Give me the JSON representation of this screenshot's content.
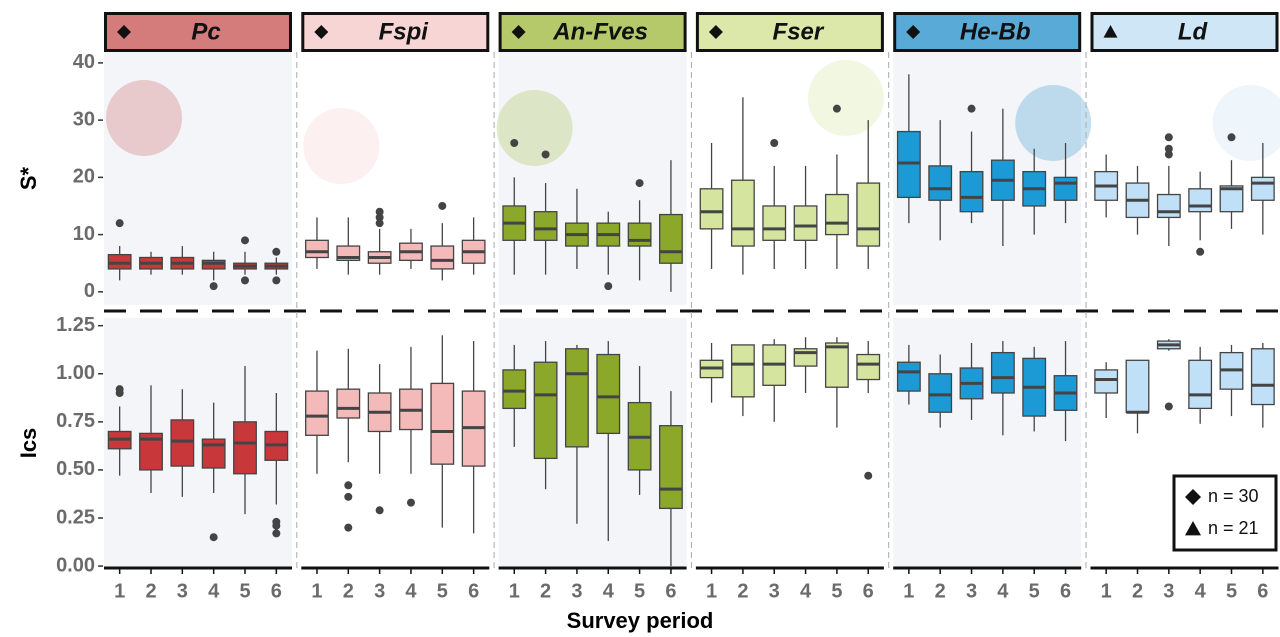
{
  "chart_data": {
    "type": "box",
    "x_label": "Survey period",
    "categories": [
      "1",
      "2",
      "3",
      "4",
      "5",
      "6"
    ],
    "rows": [
      {
        "y_label": "S*",
        "ylim": [
          -2.3,
          41.9
        ],
        "yticks": [
          0,
          10,
          20,
          30,
          40
        ]
      },
      {
        "y_label": "Ics",
        "ylim": [
          -0.01,
          1.29
        ],
        "yticks": [
          {
            "value": 0,
            "label": "0.00"
          },
          0.25,
          {
            "value": 0.5,
            "label": "0.50"
          },
          0.75,
          {
            "value": 1,
            "label": "1.00"
          },
          1.25
        ]
      }
    ],
    "legend": [
      {
        "marker": "diamond",
        "label": "n = 30"
      },
      {
        "marker": "triangle",
        "label": "n = 21"
      }
    ],
    "facets": [
      {
        "name": "Pc",
        "marker": "diamond",
        "header_color": "#d47b7b",
        "box_color": "#c8383a",
        "panel_shaded": true,
        "rows": [
          {
            "low": [
              2,
              3,
              3,
              2,
              3,
              3
            ],
            "q1": [
              4,
              4,
              4,
              4,
              4,
              4
            ],
            "median": [
              5,
              5,
              5,
              5,
              4.5,
              4.5
            ],
            "q3": [
              6.5,
              6,
              6,
              5.5,
              5,
              5
            ],
            "high": [
              8,
              7,
              8,
              7,
              7,
              6
            ],
            "outliers": [
              [
                12
              ],
              [],
              [],
              [
                1
              ],
              [
                9,
                2
              ],
              [
                7,
                2
              ]
            ]
          },
          {
            "low": [
              0.47,
              0.38,
              0.36,
              0.38,
              0.27,
              0.32
            ],
            "q1": [
              0.61,
              0.5,
              0.52,
              0.51,
              0.48,
              0.55
            ],
            "median": [
              0.66,
              0.66,
              0.65,
              0.63,
              0.64,
              0.63
            ],
            "q3": [
              0.7,
              0.69,
              0.76,
              0.66,
              0.75,
              0.7
            ],
            "high": [
              0.83,
              0.94,
              0.92,
              0.85,
              1.04,
              0.9
            ],
            "outliers": [
              [
                0.92,
                0.9
              ],
              [],
              [],
              [
                0.15
              ],
              [],
              [
                0.23,
                0.21,
                0.17
              ]
            ]
          }
        ]
      },
      {
        "name": "Fspi",
        "marker": "diamond",
        "header_color": "#f7d5d5",
        "box_color": "#f4b9b9",
        "panel_shaded": false,
        "rows": [
          {
            "low": [
              4,
              3,
              3,
              4,
              2,
              3
            ],
            "q1": [
              6,
              5.5,
              5,
              5.5,
              4,
              5
            ],
            "median": [
              7,
              6,
              6,
              7,
              5.5,
              7
            ],
            "q3": [
              9,
              8,
              7,
              8.5,
              8,
              9
            ],
            "high": [
              13,
              13,
              11,
              11,
              12,
              13
            ],
            "outliers": [
              [],
              [],
              [
                14,
                13,
                12
              ],
              [],
              [
                15
              ],
              []
            ]
          },
          {
            "low": [
              0.48,
              0.54,
              0.48,
              0.48,
              0.2,
              0.17
            ],
            "q1": [
              0.68,
              0.77,
              0.7,
              0.71,
              0.53,
              0.52
            ],
            "median": [
              0.78,
              0.82,
              0.8,
              0.81,
              0.7,
              0.72
            ],
            "q3": [
              0.91,
              0.92,
              0.9,
              0.92,
              0.95,
              0.91
            ],
            "high": [
              1.12,
              1.13,
              1.05,
              1.14,
              1.2,
              1.17
            ],
            "outliers": [
              [],
              [
                0.42,
                0.36,
                0.2
              ],
              [
                0.29
              ],
              [
                0.33
              ],
              [],
              []
            ]
          }
        ]
      },
      {
        "name": "An-Fves",
        "marker": "diamond",
        "header_color": "#b5c96b",
        "box_color": "#8ca82a",
        "panel_shaded": true,
        "rows": [
          {
            "low": [
              3,
              3,
              4,
              3,
              2,
              0
            ],
            "q1": [
              9,
              9,
              8,
              8,
              8,
              5
            ],
            "median": [
              12,
              11,
              10,
              10,
              9,
              7
            ],
            "q3": [
              15,
              14,
              12,
              12,
              12,
              13.5
            ],
            "high": [
              20,
              19,
              18,
              14,
              16,
              23
            ],
            "outliers": [
              [
                26
              ],
              [
                24
              ],
              [],
              [
                1
              ],
              [
                19
              ],
              []
            ]
          },
          {
            "low": [
              0.62,
              0.4,
              0.22,
              0.13,
              0.37,
              0
            ],
            "q1": [
              0.82,
              0.56,
              0.62,
              0.69,
              0.5,
              0.3
            ],
            "median": [
              0.91,
              0.89,
              1,
              0.88,
              0.67,
              0.4
            ],
            "q3": [
              1.02,
              1.06,
              1.13,
              1.1,
              0.85,
              0.73
            ],
            "high": [
              1.15,
              1.17,
              1.15,
              1.17,
              1.04,
              0.91
            ],
            "outliers": [
              [],
              [],
              [],
              [],
              [],
              []
            ]
          }
        ]
      },
      {
        "name": "Fser",
        "marker": "diamond",
        "header_color": "#dbe8aa",
        "box_color": "#d5e59f",
        "panel_shaded": false,
        "rows": [
          {
            "low": [
              4,
              3,
              4,
              4,
              4,
              4
            ],
            "q1": [
              11,
              8,
              9,
              9,
              10,
              8
            ],
            "median": [
              14,
              11,
              11,
              11.5,
              12,
              11
            ],
            "q3": [
              18,
              19.5,
              15,
              15,
              17,
              19
            ],
            "high": [
              26,
              34,
              22,
              22,
              24,
              30
            ],
            "outliers": [
              [],
              [],
              [
                26
              ],
              [],
              [
                32
              ],
              []
            ]
          },
          {
            "low": [
              0.85,
              0.78,
              0.75,
              0.9,
              0.72,
              0.9
            ],
            "q1": [
              0.98,
              0.88,
              0.94,
              1.04,
              0.93,
              0.97
            ],
            "median": [
              1.03,
              1.05,
              1.05,
              1.11,
              1.14,
              1.05
            ],
            "q3": [
              1.07,
              1.15,
              1.15,
              1.13,
              1.16,
              1.1
            ],
            "high": [
              1.16,
              1.15,
              1.18,
              1.19,
              1.19,
              1.17
            ],
            "outliers": [
              [],
              [],
              [],
              [],
              [],
              [
                0.47
              ]
            ]
          }
        ]
      },
      {
        "name": "He-Bb",
        "marker": "diamond",
        "header_color": "#5aaad8",
        "box_color": "#1b9ad6",
        "panel_shaded": true,
        "rows": [
          {
            "low": [
              12,
              9,
              12,
              8,
              10,
              12
            ],
            "q1": [
              16.5,
              16,
              14,
              16,
              15,
              16
            ],
            "median": [
              22.5,
              18,
              16.5,
              19.5,
              18,
              19
            ],
            "q3": [
              28,
              22,
              21,
              23,
              21,
              20
            ],
            "high": [
              38,
              30,
              28,
              32,
              25,
              26
            ],
            "outliers": [
              [],
              [],
              [
                32
              ],
              [],
              [],
              []
            ]
          },
          {
            "low": [
              0.84,
              0.72,
              0.76,
              0.68,
              0.7,
              0.65
            ],
            "q1": [
              0.91,
              0.8,
              0.87,
              0.9,
              0.78,
              0.81
            ],
            "median": [
              1.01,
              0.89,
              0.95,
              0.98,
              0.93,
              0.9
            ],
            "q3": [
              1.06,
              1,
              1.03,
              1.11,
              1.08,
              0.99
            ],
            "high": [
              1.15,
              1.1,
              1.16,
              1.17,
              1.14,
              1.17
            ],
            "outliers": [
              [],
              [],
              [],
              [],
              [],
              []
            ]
          }
        ]
      },
      {
        "name": "Ld",
        "marker": "triangle",
        "header_color": "#cfe6f6",
        "box_color": "#bfe0f7",
        "panel_shaded": false,
        "rows": [
          {
            "low": [
              13,
              10,
              8,
              9,
              11,
              10
            ],
            "q1": [
              16,
              13,
              13,
              14,
              14,
              16
            ],
            "median": [
              18.5,
              16,
              14,
              15,
              18,
              19
            ],
            "q3": [
              21,
              19,
              17,
              18,
              18.5,
              20
            ],
            "high": [
              24,
              22,
              22,
              21,
              23,
              26
            ],
            "outliers": [
              [],
              [],
              [
                27,
                25,
                24
              ],
              [
                7
              ],
              [
                27
              ],
              []
            ]
          },
          {
            "low": [
              0.77,
              0.69,
              1.12,
              0.74,
              0.78,
              0.72
            ],
            "q1": [
              0.9,
              0.8,
              1.13,
              0.82,
              0.92,
              0.84
            ],
            "median": [
              0.97,
              0.8,
              1.15,
              0.89,
              1.02,
              0.94
            ],
            "q3": [
              1.02,
              1.07,
              1.17,
              1.07,
              1.11,
              1.13
            ],
            "high": [
              1.06,
              1.07,
              1.18,
              1.14,
              1.15,
              1.16
            ],
            "outliers": [
              [],
              [],
              [
                0.83
              ],
              [],
              [],
              []
            ]
          }
        ]
      }
    ]
  }
}
